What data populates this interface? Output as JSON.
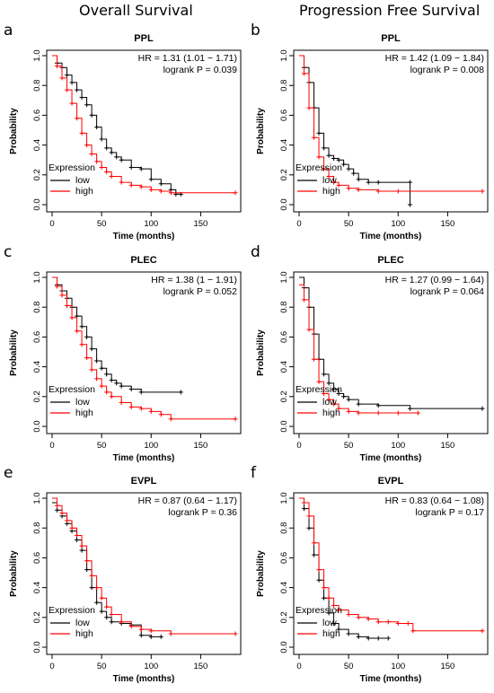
{
  "headers": {
    "left": "Overall Survival",
    "right": "Progression Free Survival"
  },
  "colors": {
    "low": "#000000",
    "high": "#ff0000"
  },
  "chart_data": [
    {
      "type": "line",
      "panel": "a",
      "title": "PPL",
      "hr_text": "HR = 1.31 (1.01 − 1.71)",
      "p_text": "logrank P = 0.039",
      "xlabel": "Time (months)",
      "ylabel": "Probability",
      "xlim": [
        0,
        185
      ],
      "ylim": [
        0,
        1
      ],
      "xticks": [
        0,
        50,
        100,
        150
      ],
      "yticks": [
        0.0,
        0.2,
        0.4,
        0.6,
        0.8,
        1.0
      ],
      "legend": {
        "title": "Expression",
        "position": "bottom-left"
      },
      "series": [
        {
          "name": "low",
          "color": "#000000",
          "x": [
            0,
            5,
            10,
            15,
            20,
            25,
            30,
            35,
            40,
            45,
            50,
            55,
            60,
            65,
            70,
            80,
            90,
            100,
            110,
            120,
            125,
            130
          ],
          "y": [
            1.0,
            0.95,
            0.92,
            0.87,
            0.82,
            0.77,
            0.72,
            0.67,
            0.6,
            0.52,
            0.44,
            0.38,
            0.35,
            0.32,
            0.3,
            0.25,
            0.24,
            0.17,
            0.14,
            0.1,
            0.07,
            0.07
          ]
        },
        {
          "name": "high",
          "color": "#ff0000",
          "x": [
            0,
            5,
            10,
            15,
            20,
            25,
            30,
            35,
            40,
            45,
            50,
            55,
            60,
            70,
            80,
            90,
            100,
            110,
            120,
            185
          ],
          "y": [
            1.0,
            0.93,
            0.85,
            0.77,
            0.68,
            0.58,
            0.48,
            0.4,
            0.34,
            0.29,
            0.25,
            0.22,
            0.19,
            0.15,
            0.13,
            0.12,
            0.1,
            0.09,
            0.08,
            0.08
          ]
        }
      ]
    },
    {
      "type": "line",
      "panel": "b",
      "title": "PPL",
      "hr_text": "HR = 1.42 (1.09 − 1.84)",
      "p_text": "logrank P = 0.008",
      "xlabel": "Time (months)",
      "ylabel": "Probability",
      "xlim": [
        0,
        185
      ],
      "ylim": [
        0,
        1
      ],
      "xticks": [
        0,
        50,
        100,
        150
      ],
      "yticks": [
        0.0,
        0.2,
        0.4,
        0.6,
        0.8,
        1.0
      ],
      "legend": {
        "title": "Expression",
        "position": "bottom-left"
      },
      "series": [
        {
          "name": "low",
          "color": "#000000",
          "x": [
            0,
            5,
            10,
            15,
            20,
            25,
            30,
            35,
            40,
            45,
            50,
            55,
            60,
            70,
            80,
            112,
            112
          ],
          "y": [
            1.0,
            0.92,
            0.82,
            0.65,
            0.48,
            0.38,
            0.33,
            0.31,
            0.3,
            0.27,
            0.24,
            0.21,
            0.17,
            0.15,
            0.15,
            0.15,
            0.0
          ]
        },
        {
          "name": "high",
          "color": "#ff0000",
          "x": [
            0,
            5,
            10,
            15,
            20,
            25,
            30,
            35,
            40,
            50,
            60,
            80,
            100,
            185
          ],
          "y": [
            1.0,
            0.88,
            0.65,
            0.45,
            0.32,
            0.24,
            0.19,
            0.15,
            0.13,
            0.11,
            0.1,
            0.09,
            0.09,
            0.09
          ]
        }
      ]
    },
    {
      "type": "line",
      "panel": "c",
      "title": "PLEC",
      "hr_text": "HR = 1.38 (1 − 1.91)",
      "p_text": "logrank P = 0.052",
      "xlabel": "Time (months)",
      "ylabel": "Probability",
      "xlim": [
        0,
        185
      ],
      "ylim": [
        0,
        1
      ],
      "xticks": [
        0,
        50,
        100,
        150
      ],
      "yticks": [
        0.0,
        0.2,
        0.4,
        0.6,
        0.8,
        1.0
      ],
      "legend": {
        "title": "Expression",
        "position": "bottom-left"
      },
      "series": [
        {
          "name": "low",
          "color": "#000000",
          "x": [
            0,
            5,
            10,
            15,
            20,
            25,
            30,
            35,
            40,
            45,
            50,
            55,
            60,
            65,
            70,
            80,
            90,
            130
          ],
          "y": [
            1.0,
            0.95,
            0.91,
            0.86,
            0.8,
            0.74,
            0.67,
            0.6,
            0.52,
            0.44,
            0.39,
            0.35,
            0.31,
            0.29,
            0.27,
            0.25,
            0.23,
            0.23
          ]
        },
        {
          "name": "high",
          "color": "#ff0000",
          "x": [
            0,
            5,
            10,
            15,
            20,
            25,
            30,
            35,
            40,
            45,
            50,
            55,
            60,
            70,
            80,
            90,
            100,
            110,
            120,
            185
          ],
          "y": [
            1.0,
            0.94,
            0.88,
            0.81,
            0.73,
            0.64,
            0.55,
            0.46,
            0.38,
            0.32,
            0.27,
            0.23,
            0.2,
            0.16,
            0.13,
            0.12,
            0.1,
            0.08,
            0.05,
            0.05
          ]
        }
      ]
    },
    {
      "type": "line",
      "panel": "d",
      "title": "PLEC",
      "hr_text": "HR = 1.27 (0.99 − 1.64)",
      "p_text": "logrank P = 0.064",
      "xlabel": "Time (months)",
      "ylabel": "Probability",
      "xlim": [
        0,
        185
      ],
      "ylim": [
        0,
        1
      ],
      "xticks": [
        0,
        50,
        100,
        150
      ],
      "yticks": [
        0.0,
        0.2,
        0.4,
        0.6,
        0.8,
        1.0
      ],
      "legend": {
        "title": "Expression",
        "position": "bottom-left"
      },
      "series": [
        {
          "name": "low",
          "color": "#000000",
          "x": [
            0,
            5,
            10,
            15,
            20,
            25,
            30,
            35,
            40,
            45,
            50,
            60,
            80,
            112,
            185
          ],
          "y": [
            1.0,
            0.93,
            0.8,
            0.62,
            0.45,
            0.35,
            0.29,
            0.25,
            0.22,
            0.2,
            0.18,
            0.15,
            0.14,
            0.12,
            0.12
          ]
        },
        {
          "name": "high",
          "color": "#ff0000",
          "x": [
            0,
            5,
            10,
            15,
            20,
            25,
            30,
            35,
            40,
            50,
            60,
            80,
            100,
            120
          ],
          "y": [
            0.95,
            0.85,
            0.65,
            0.45,
            0.3,
            0.22,
            0.18,
            0.15,
            0.12,
            0.1,
            0.09,
            0.09,
            0.09,
            0.09
          ]
        }
      ]
    },
    {
      "type": "line",
      "panel": "e",
      "title": "EVPL",
      "hr_text": "HR = 0.87 (0.64 − 1.17)",
      "p_text": "logrank P = 0.36",
      "xlabel": "Time (months)",
      "ylabel": "Probability",
      "xlim": [
        0,
        185
      ],
      "ylim": [
        0,
        1
      ],
      "xticks": [
        0,
        50,
        100,
        150
      ],
      "yticks": [
        0.0,
        0.2,
        0.4,
        0.6,
        0.8,
        1.0
      ],
      "legend": {
        "title": "Expression",
        "position": "bottom-left"
      },
      "series": [
        {
          "name": "low",
          "color": "#000000",
          "x": [
            0,
            5,
            10,
            15,
            20,
            25,
            30,
            35,
            40,
            45,
            50,
            55,
            60,
            70,
            80,
            90,
            100,
            110
          ],
          "y": [
            0.97,
            0.92,
            0.88,
            0.83,
            0.78,
            0.72,
            0.65,
            0.52,
            0.4,
            0.3,
            0.24,
            0.2,
            0.17,
            0.16,
            0.15,
            0.08,
            0.07,
            0.07
          ]
        },
        {
          "name": "high",
          "color": "#ff0000",
          "x": [
            0,
            5,
            10,
            15,
            20,
            25,
            30,
            35,
            40,
            45,
            50,
            55,
            60,
            70,
            80,
            90,
            100,
            120,
            185
          ],
          "y": [
            1.0,
            0.95,
            0.9,
            0.85,
            0.8,
            0.75,
            0.68,
            0.58,
            0.48,
            0.4,
            0.33,
            0.27,
            0.22,
            0.17,
            0.14,
            0.12,
            0.11,
            0.09,
            0.09
          ]
        }
      ]
    },
    {
      "type": "line",
      "panel": "f",
      "title": "EVPL",
      "hr_text": "HR = 0.83 (0.64 − 1.08)",
      "p_text": "logrank P = 0.17",
      "xlabel": "Time (months)",
      "ylabel": "Probability",
      "xlim": [
        0,
        185
      ],
      "ylim": [
        0,
        1
      ],
      "xticks": [
        0,
        50,
        100,
        150
      ],
      "yticks": [
        0.0,
        0.2,
        0.4,
        0.6,
        0.8,
        1.0
      ],
      "legend": {
        "title": "Expression",
        "position": "bottom-left"
      },
      "series": [
        {
          "name": "low",
          "color": "#000000",
          "x": [
            0,
            5,
            10,
            15,
            20,
            25,
            30,
            35,
            40,
            50,
            60,
            70,
            80,
            90
          ],
          "y": [
            1.0,
            0.93,
            0.8,
            0.62,
            0.45,
            0.33,
            0.23,
            0.16,
            0.12,
            0.09,
            0.07,
            0.06,
            0.06,
            0.06
          ]
        },
        {
          "name": "high",
          "color": "#ff0000",
          "x": [
            0,
            5,
            10,
            15,
            20,
            25,
            30,
            35,
            40,
            50,
            60,
            70,
            80,
            90,
            100,
            110,
            115,
            185
          ],
          "y": [
            1.0,
            0.97,
            0.88,
            0.7,
            0.52,
            0.4,
            0.33,
            0.28,
            0.25,
            0.22,
            0.2,
            0.19,
            0.17,
            0.17,
            0.16,
            0.16,
            0.11,
            0.11
          ]
        }
      ]
    }
  ]
}
